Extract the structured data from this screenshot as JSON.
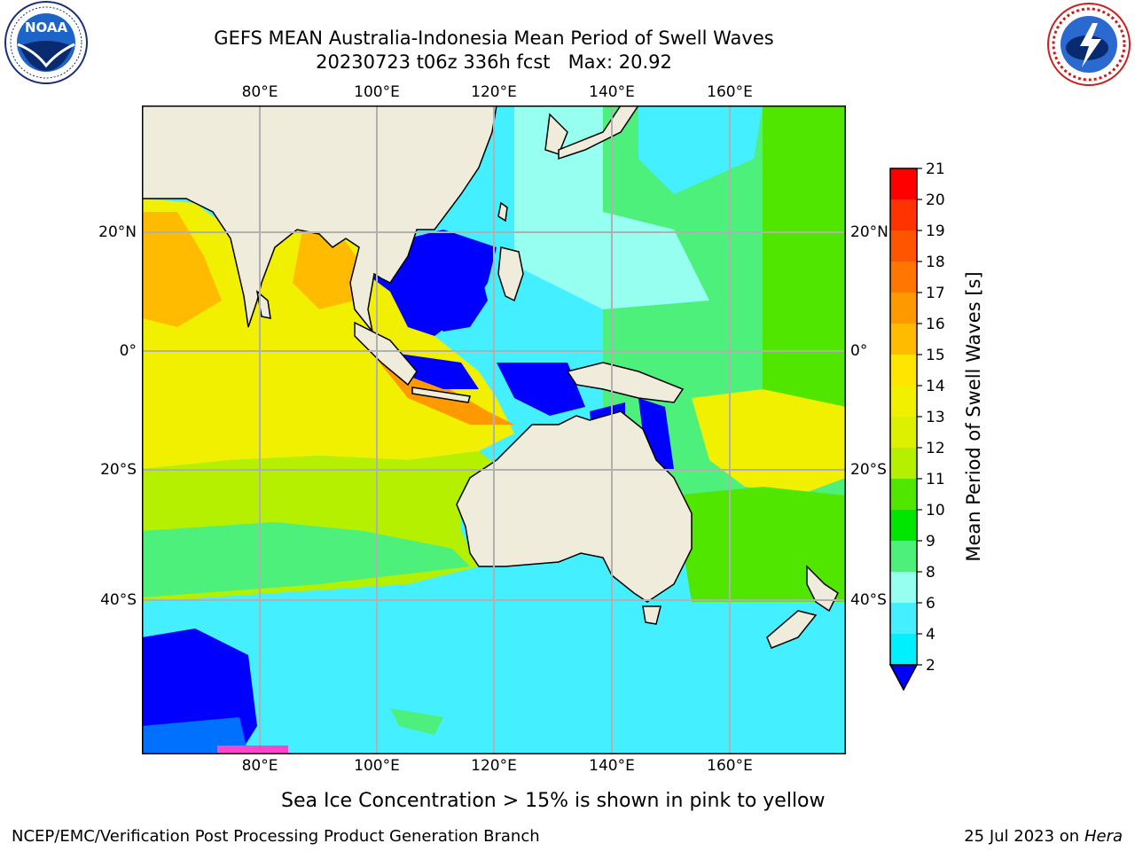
{
  "title": {
    "line1": "GEFS MEAN Australia-Indonesia Mean Period of Swell Waves",
    "line2": "20230723 t06z 336h fcst   Max: 20.92"
  },
  "logos": {
    "left_icon": "noaa-logo-icon",
    "right_icon": "nws-logo-icon"
  },
  "axes": {
    "lon_labels": [
      "80°E",
      "100°E",
      "120°E",
      "140°E",
      "160°E"
    ],
    "lat_labels_left": [
      "20°N",
      "0°",
      "20°S",
      "40°S"
    ],
    "lat_labels_right": [
      "20°N",
      "0°",
      "20°S",
      "40°S"
    ]
  },
  "colorbar": {
    "label": "Mean Period of Swell Waves [s]",
    "ticks": [
      "21",
      "20",
      "19",
      "18",
      "17",
      "16",
      "15",
      "14",
      "13",
      "12",
      "11",
      "10",
      "9",
      "8",
      "6",
      "4",
      "2"
    ],
    "colors": [
      "#ff0000",
      "#ff3300",
      "#ff5500",
      "#ff7700",
      "#ff9900",
      "#ffbb00",
      "#ffe600",
      "#f0f000",
      "#ddf000",
      "#b4f000",
      "#50e600",
      "#00e600",
      "#4cf07a",
      "#96fff0",
      "#44f0ff",
      "#00f0ff",
      "#0070ff",
      "#0000ff"
    ]
  },
  "map": {
    "land_color": "#efecdc",
    "grid_color": "#b0b0b0"
  },
  "footnote": "Sea Ice Concentration > 15% is shown in pink to yellow",
  "credit": "NCEP/EMC/Verification Post Processing Product Generation Branch",
  "date": "25 Jul 2023 on ",
  "date_host": "Hera"
}
